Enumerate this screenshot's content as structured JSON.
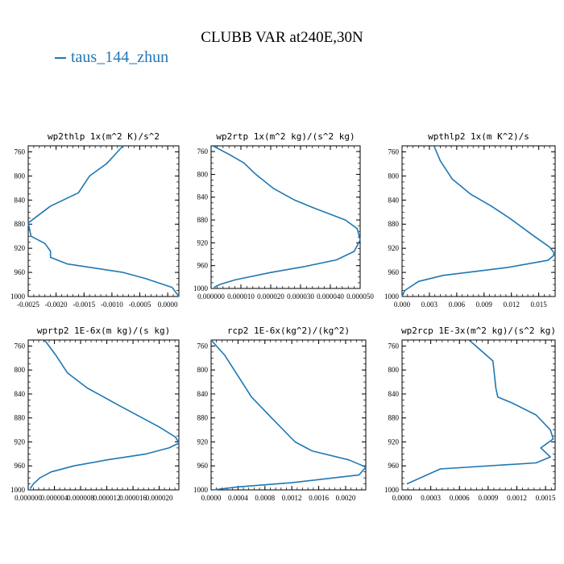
{
  "title": "CLUBB VAR at240E,30N",
  "legend": [
    {
      "label": "taus_144_zhun",
      "color": "#1f77b4"
    }
  ],
  "chart_data": [
    {
      "type": "line",
      "title": "wp2thlp   1x(m^2 K)/s^2",
      "x": [
        -0.0008,
        -0.0011,
        -0.0014,
        -0.0016,
        -0.0021,
        -0.0025,
        -0.00245,
        -0.0022,
        -0.0021,
        -0.0021,
        -0.0018,
        -0.0008,
        -0.0004,
        8e-05,
        0.0002
      ],
      "y": [
        750,
        780,
        800,
        828,
        850,
        878,
        900,
        912,
        925,
        935,
        946,
        960,
        970,
        985,
        1000
      ],
      "xlim": [
        -0.0025,
        0.0002
      ],
      "ylim": [
        1000,
        750
      ],
      "xticks": [
        "-0.0025",
        "-0.0020",
        "-0.0015",
        "-0.0010",
        "-0.0005",
        "0.0000"
      ],
      "yticks": [
        "760",
        "800",
        "840",
        "880",
        "920",
        "960",
        "1000"
      ]
    },
    {
      "type": "line",
      "title": "wp2rtp   1x(m^2 kg)/(s^2 kg)",
      "x": [
        6e-07,
        6e-06,
        1.1e-05,
        1.5e-05,
        2.1e-05,
        2.8e-05,
        3.5e-05,
        4.5e-05,
        4.9e-05,
        5e-05,
        4.8e-05,
        4.2e-05,
        3.1e-05,
        2e-05,
        8e-06,
        3e-06,
        1e-06
      ],
      "y": [
        750,
        765,
        780,
        800,
        825,
        845,
        860,
        880,
        895,
        915,
        935,
        950,
        962,
        972,
        985,
        993,
        998
      ],
      "xlim": [
        0,
        5e-05
      ],
      "ylim": [
        1000,
        750
      ],
      "xticks": [
        "0.000000",
        "0.000010",
        "0.000020",
        "0.000030",
        "0.000040",
        "0.000050"
      ],
      "yticks": [
        "760",
        "800",
        "840",
        "880",
        "920",
        "960",
        "1000"
      ]
    },
    {
      "type": "line",
      "title": "wpthlp2   1x(m K^2)/s",
      "x": [
        0.0035,
        0.0042,
        0.0055,
        0.0075,
        0.0098,
        0.0118,
        0.0145,
        0.0162,
        0.0168,
        0.016,
        0.0115,
        0.0045,
        0.0018,
        0.0003,
        0.0
      ],
      "y": [
        750,
        775,
        805,
        830,
        850,
        870,
        900,
        918,
        930,
        940,
        952,
        965,
        975,
        990,
        1000
      ],
      "xlim": [
        0.0,
        0.0168
      ],
      "ylim": [
        1000,
        750
      ],
      "xticks": [
        "0.000",
        "0.003",
        "0.006",
        "0.009",
        "0.012",
        "0.015"
      ],
      "yticks": [
        "760",
        "800",
        "840",
        "880",
        "920",
        "960",
        "1000"
      ]
    },
    {
      "type": "line",
      "title": "wprtp2   1E-6x(m kg)/(s kg)",
      "x": [
        2.5e-06,
        4.2e-06,
        6e-06,
        9e-06,
        1.4e-05,
        2e-05,
        2.25e-05,
        2.3e-05,
        2.15e-05,
        1.8e-05,
        1.2e-05,
        7e-06,
        3.5e-06,
        1.8e-06,
        8e-07,
        3e-07
      ],
      "y": [
        750,
        775,
        805,
        830,
        860,
        895,
        912,
        922,
        930,
        940,
        950,
        960,
        970,
        980,
        990,
        998
      ],
      "xlim": [
        0,
        2.3e-05
      ],
      "ylim": [
        1000,
        750
      ],
      "xticks": [
        "0.000000",
        "0.000004",
        "0.000008",
        "0.000012",
        "0.000016",
        "0.000020"
      ],
      "yticks": [
        "760",
        "800",
        "840",
        "880",
        "920",
        "960",
        "1000"
      ]
    },
    {
      "type": "line",
      "title": "rcp2   1E-6x(kg^2)/(kg^2)",
      "x": [
        0.0,
        0.0002,
        0.0004,
        0.0006,
        0.0009,
        0.00125,
        0.0015,
        0.00205,
        0.0023,
        0.0022,
        0.0012,
        0.0004,
        3e-05
      ],
      "y": [
        750,
        775,
        810,
        845,
        880,
        920,
        935,
        950,
        962,
        975,
        988,
        995,
        1000
      ],
      "xlim": [
        0.0,
        0.0023
      ],
      "ylim": [
        1000,
        750
      ],
      "xticks": [
        "0.0000",
        "0.0004",
        "0.0008",
        "0.0012",
        "0.0016",
        "0.0020"
      ],
      "yticks": [
        "760",
        "800",
        "840",
        "880",
        "920",
        "960",
        "1000"
      ]
    },
    {
      "type": "line",
      "title": "wp2rcp   1E-3x(m^2 kg)/(s^2 kg)",
      "x": [
        0.0007,
        0.00095,
        0.00098,
        0.001,
        0.00115,
        0.0014,
        0.00155,
        0.00158,
        0.00145,
        0.00155,
        0.0014,
        0.0004,
        5e-05
      ],
      "y": [
        750,
        785,
        830,
        845,
        855,
        875,
        900,
        915,
        930,
        945,
        955,
        965,
        990
      ],
      "xlim": [
        0.0,
        0.0016
      ],
      "ylim": [
        1000,
        750
      ],
      "xticks": [
        "0.0000",
        "0.0003",
        "0.0006",
        "0.0009",
        "0.0012",
        "0.0015"
      ],
      "yticks": [
        "760",
        "800",
        "840",
        "880",
        "920",
        "960",
        "1000"
      ]
    }
  ]
}
